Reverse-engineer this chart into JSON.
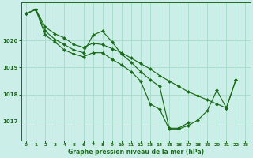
{
  "background_color": "#cceee8",
  "grid_color": "#aaddcc",
  "line_color": "#1a6b1a",
  "marker_color": "#1a6b1a",
  "xlabel": "Graphe pression niveau de la mer (hPa)",
  "xlabel_color": "#1a6b1a",
  "yticks": [
    1017,
    1018,
    1019,
    1020
  ],
  "xticks": [
    0,
    1,
    2,
    3,
    4,
    5,
    6,
    7,
    8,
    9,
    10,
    11,
    12,
    13,
    14,
    15,
    16,
    17,
    18,
    19,
    20,
    21,
    22,
    23
  ],
  "xlim": [
    -0.5,
    23.5
  ],
  "ylim": [
    1016.3,
    1021.4
  ],
  "series": [
    {
      "x": [
        0,
        1,
        2,
        3,
        4,
        5,
        6,
        7,
        8,
        9,
        10,
        11,
        12,
        13,
        14,
        15,
        16,
        17,
        18,
        19,
        20,
        21,
        22
      ],
      "y": [
        1021.0,
        1021.15,
        1020.5,
        1020.25,
        1020.1,
        1019.85,
        1019.75,
        1019.9,
        1019.85,
        1019.7,
        1019.55,
        1019.35,
        1019.15,
        1018.95,
        1018.7,
        1018.5,
        1018.3,
        1018.1,
        1017.95,
        1017.8,
        1017.65,
        1017.5,
        1018.55
      ]
    },
    {
      "x": [
        0,
        1,
        2,
        3,
        4,
        5,
        6,
        7,
        8,
        9,
        10,
        11,
        12,
        13,
        14,
        15,
        16,
        17
      ],
      "y": [
        1021.0,
        1021.15,
        1020.35,
        1020.05,
        1019.85,
        1019.65,
        1019.55,
        1020.2,
        1020.35,
        1019.95,
        1019.5,
        1019.2,
        1018.85,
        1018.55,
        1018.3,
        1016.75,
        1016.75,
        1016.95
      ]
    },
    {
      "x": [
        0,
        1,
        2,
        3,
        4,
        5,
        6,
        7,
        8,
        9,
        10,
        11,
        12,
        13,
        14,
        15,
        16,
        17,
        18,
        19,
        20,
        21,
        22
      ],
      "y": [
        1021.0,
        1021.15,
        1020.2,
        1019.95,
        1019.65,
        1019.5,
        1019.4,
        1019.55,
        1019.55,
        1019.3,
        1019.1,
        1018.85,
        1018.5,
        1017.65,
        1017.45,
        1016.72,
        1016.72,
        1016.85,
        1017.05,
        1017.4,
        1018.15,
        1017.5,
        1018.55
      ]
    }
  ]
}
